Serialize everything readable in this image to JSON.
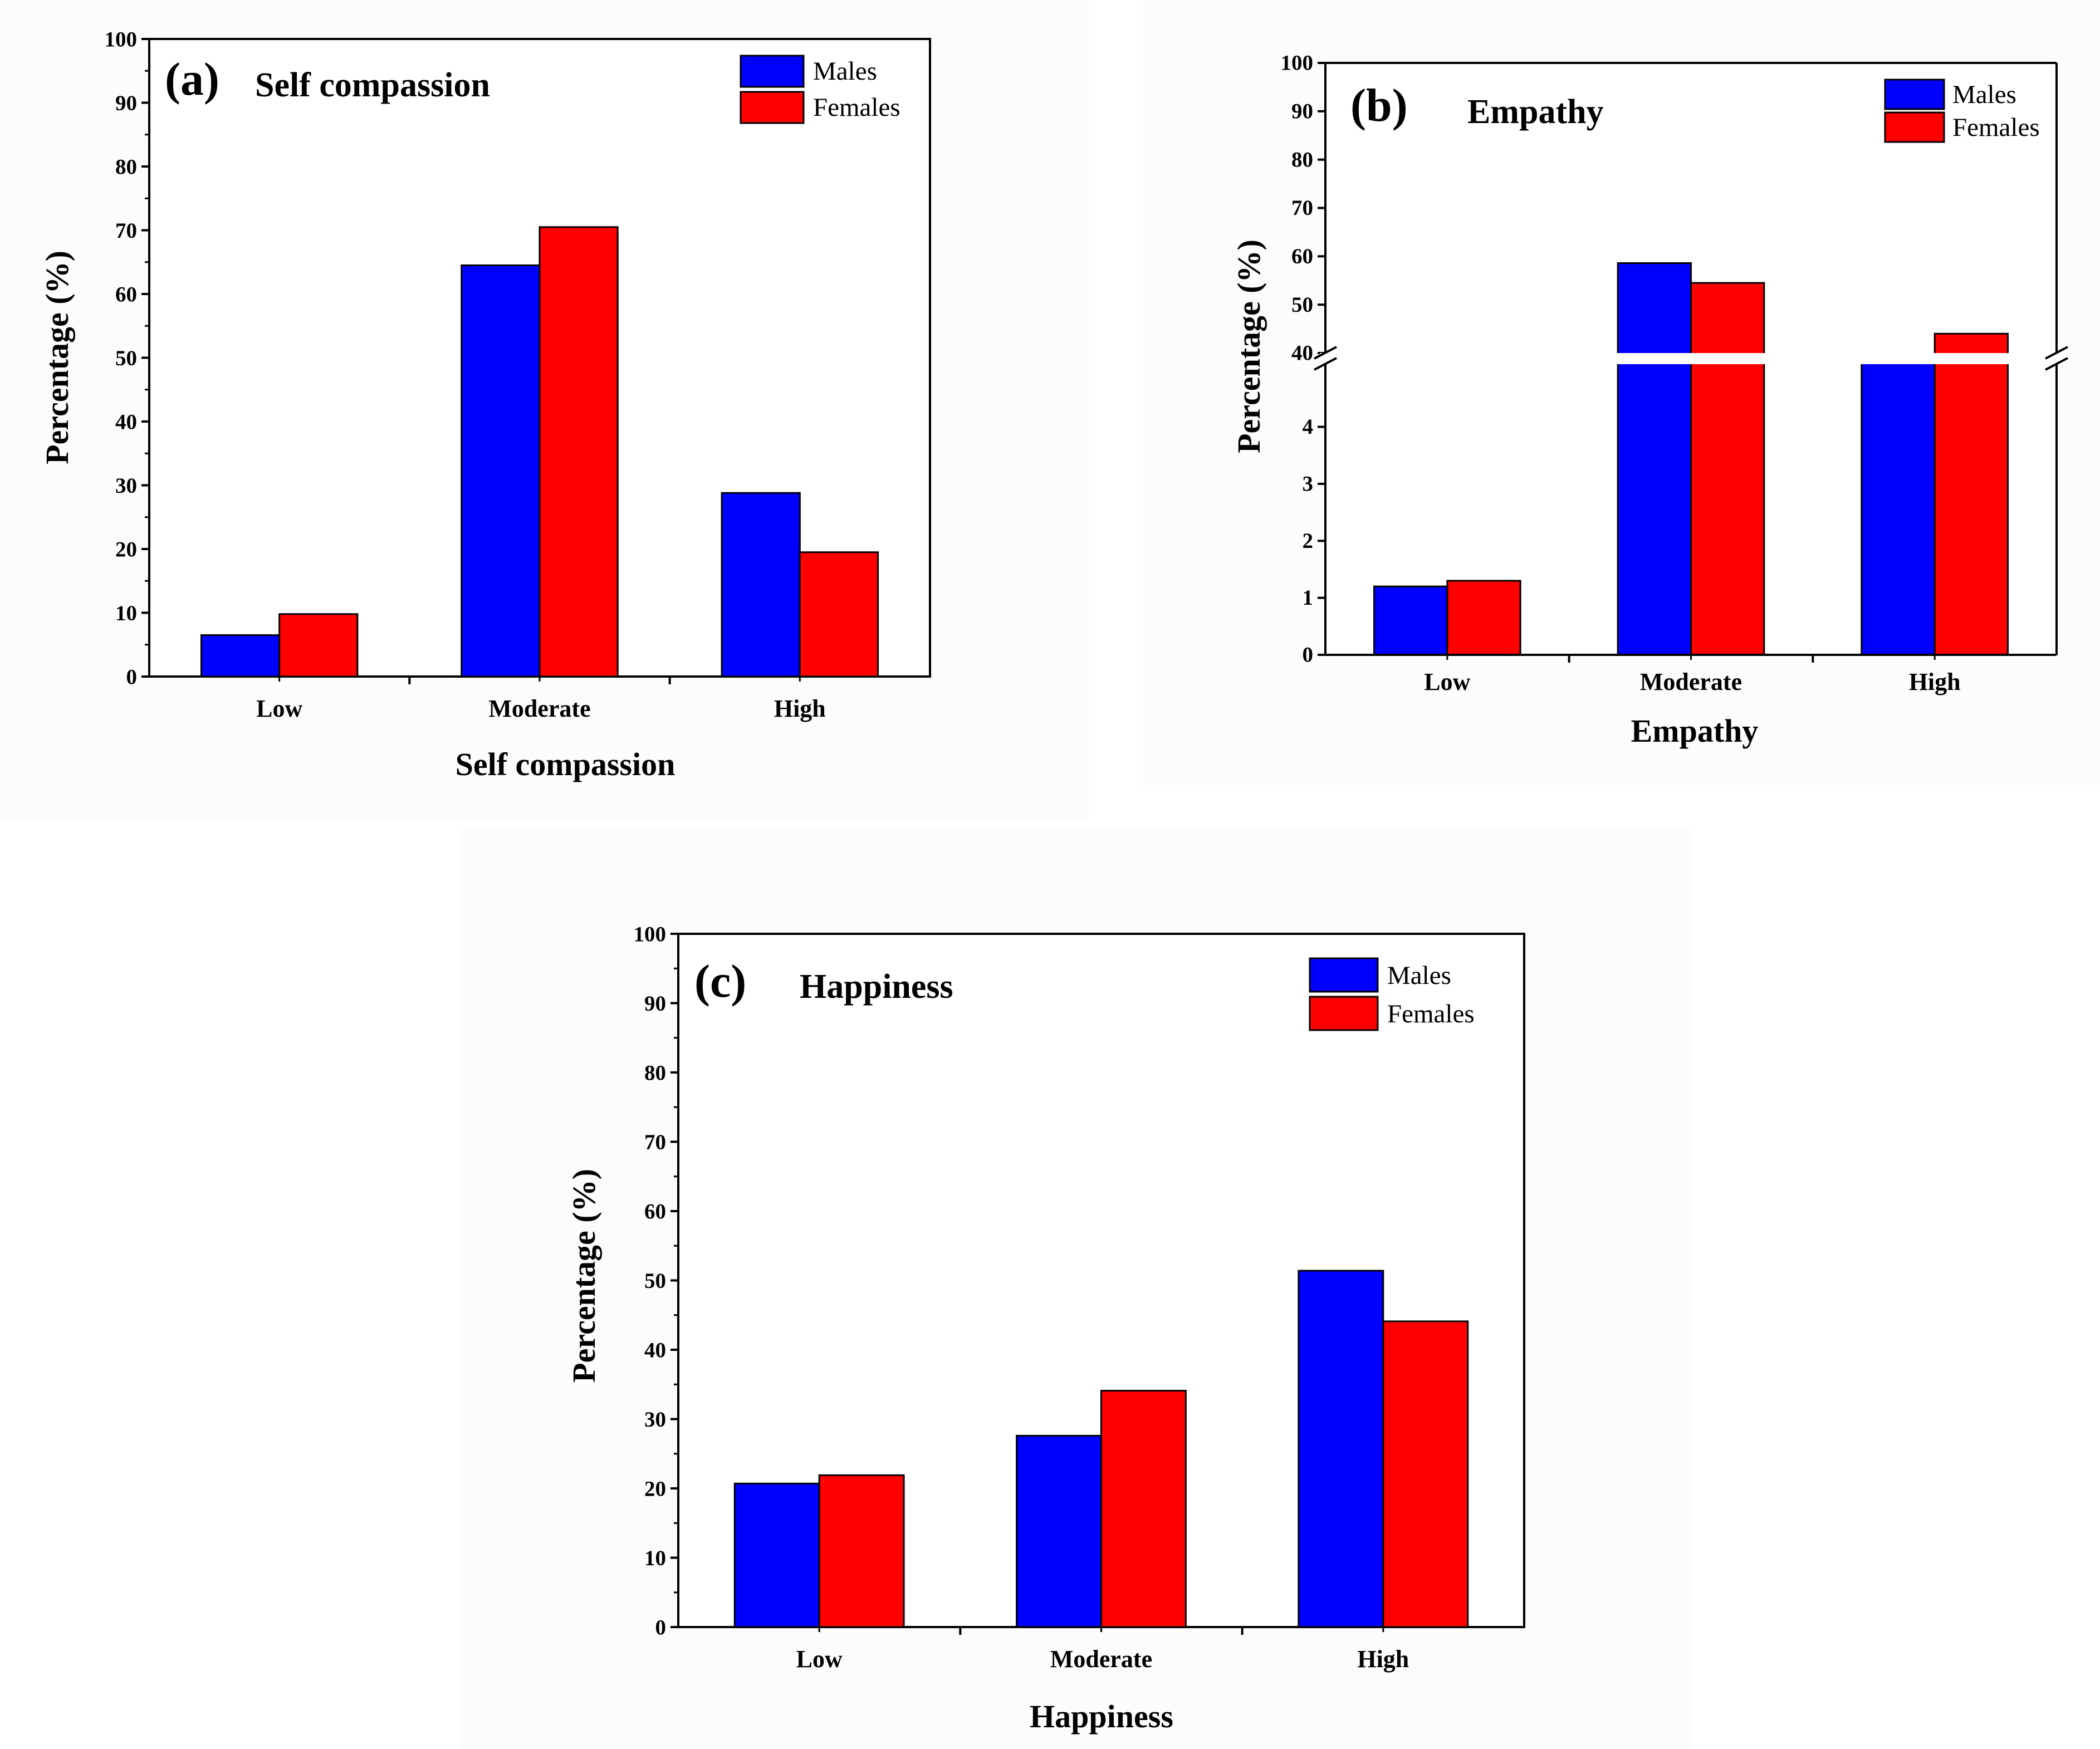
{
  "chart_data": [
    {
      "type": "bar",
      "panel": "(a)",
      "title": "Self compassion",
      "xlabel": "Self compassion",
      "ylabel": "Percentage (%)",
      "categories": [
        "Low",
        "Moderate",
        "High"
      ],
      "ylim": [
        0,
        100
      ],
      "yticks": [
        0,
        10,
        20,
        30,
        40,
        50,
        60,
        70,
        80,
        90,
        100
      ],
      "axis_break": null,
      "series": [
        {
          "name": "Males",
          "color": "#0000ff",
          "values": [
            6.5,
            64.5,
            28.8
          ]
        },
        {
          "name": "Females",
          "color": "#ff0000",
          "values": [
            9.8,
            70.5,
            19.5
          ]
        }
      ]
    },
    {
      "type": "bar",
      "panel": "(b)",
      "title": "Empathy",
      "xlabel": "Empathy",
      "ylabel": "Percentage (%)",
      "categories": [
        "Low",
        "Moderate",
        "High"
      ],
      "ylim": [
        0,
        100
      ],
      "yticks": [
        0,
        1,
        2,
        3,
        4,
        40,
        50,
        60,
        70,
        80,
        90,
        100
      ],
      "axis_break": {
        "lower": [
          0,
          5.1
        ],
        "upper": [
          40,
          100
        ]
      },
      "series": [
        {
          "name": "Males",
          "color": "#0000ff",
          "values": [
            1.2,
            58.6,
            38.6
          ]
        },
        {
          "name": "Females",
          "color": "#ff0000",
          "values": [
            1.3,
            54.5,
            44.0
          ]
        }
      ]
    },
    {
      "type": "bar",
      "panel": "(c)",
      "title": "Happiness",
      "xlabel": "Happiness",
      "ylabel": "Percentage (%)",
      "categories": [
        "Low",
        "Moderate",
        "High"
      ],
      "ylim": [
        0,
        100
      ],
      "yticks": [
        0,
        10,
        20,
        30,
        40,
        50,
        60,
        70,
        80,
        90,
        100
      ],
      "axis_break": null,
      "series": [
        {
          "name": "Males",
          "color": "#0000ff",
          "values": [
            20.7,
            27.6,
            51.4
          ]
        },
        {
          "name": "Females",
          "color": "#ff0000",
          "values": [
            21.9,
            34.1,
            44.1
          ]
        }
      ]
    }
  ]
}
